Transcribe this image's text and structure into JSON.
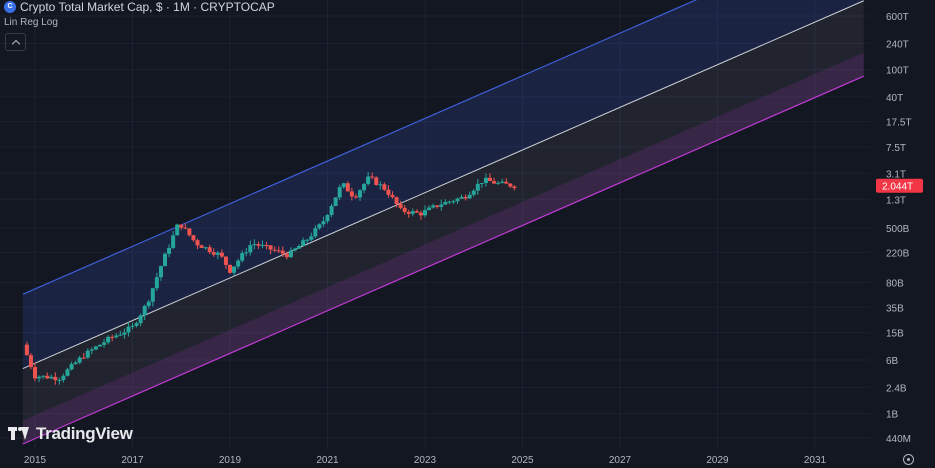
{
  "header": {
    "title": "Crypto Total Market Cap, $ · 1M · CRYPTOCAP",
    "indicator": "Lin Reg Log",
    "icon": "crypto-cap-icon"
  },
  "watermark": {
    "brand": "TradingView",
    "icon": "tradingview-logo-icon"
  },
  "colors": {
    "background": "#131722",
    "candle_up": "#26a69a",
    "candle_down": "#ef5350",
    "upper_band": "#3f5fd8",
    "lower_band": "#c03ad6",
    "midline": "#cfd2d8",
    "price_badge": "#f23645"
  },
  "chart_data": {
    "type": "candlestick",
    "scale": "log",
    "xrange": [
      2014.75,
      2032.0
    ],
    "yrange": [
      300000000.0,
      1000000000000000.0
    ],
    "y_ticks": [
      {
        "label": "600T",
        "value": 600000000000000.0
      },
      {
        "label": "240T",
        "value": 240000000000000.0
      },
      {
        "label": "100T",
        "value": 100000000000000.0
      },
      {
        "label": "40T",
        "value": 40000000000000.0
      },
      {
        "label": "17.5T",
        "value": 17500000000000.0
      },
      {
        "label": "7.5T",
        "value": 7500000000000.0
      },
      {
        "label": "3.1T",
        "value": 3100000000000.0
      },
      {
        "label": "1.3T",
        "value": 1300000000000.0
      },
      {
        "label": "500B",
        "value": 500000000000.0
      },
      {
        "label": "220B",
        "value": 220000000000.0
      },
      {
        "label": "80B",
        "value": 80000000000.0
      },
      {
        "label": "35B",
        "value": 35000000000.0
      },
      {
        "label": "15B",
        "value": 15000000000.0
      },
      {
        "label": "6B",
        "value": 6000000000.0
      },
      {
        "label": "2.4B",
        "value": 2400000000.0
      },
      {
        "label": "1B",
        "value": 1000000000.0
      },
      {
        "label": "440M",
        "value": 440000000.0
      }
    ],
    "x_ticks": [
      {
        "label": "2015",
        "value": 2015.0
      },
      {
        "label": "2017",
        "value": 2017.0
      },
      {
        "label": "2019",
        "value": 2019.0
      },
      {
        "label": "2021",
        "value": 2021.0
      },
      {
        "label": "2023",
        "value": 2023.0
      },
      {
        "label": "2025",
        "value": 2025.0
      },
      {
        "label": "2027",
        "value": 2027.0
      },
      {
        "label": "2029",
        "value": 2029.0
      },
      {
        "label": "2031",
        "value": 2031.0
      }
    ],
    "last_price": {
      "label": "2.044T",
      "value": 2044000000000.0
    },
    "regression": {
      "start": {
        "x": 2014.75,
        "y": 4500000000.0
      },
      "end": {
        "x": 2032.0,
        "y": 1000000000000000.0
      },
      "upper_factor": 12.0,
      "lower_factor": 0.08
    },
    "key_points": [
      {
        "x": 2014.75,
        "y": 10000000000.0
      },
      {
        "x": 2015.0,
        "y": 3500000000.0
      },
      {
        "x": 2015.5,
        "y": 3300000000.0
      },
      {
        "x": 2016.0,
        "y": 7000000000.0
      },
      {
        "x": 2016.5,
        "y": 12000000000.0
      },
      {
        "x": 2017.0,
        "y": 18000000000.0
      },
      {
        "x": 2017.3,
        "y": 40000000000.0
      },
      {
        "x": 2017.6,
        "y": 150000000000.0
      },
      {
        "x": 2017.95,
        "y": 600000000000.0
      },
      {
        "x": 2018.3,
        "y": 300000000000.0
      },
      {
        "x": 2018.8,
        "y": 200000000000.0
      },
      {
        "x": 2019.0,
        "y": 120000000000.0
      },
      {
        "x": 2019.45,
        "y": 300000000000.0
      },
      {
        "x": 2020.2,
        "y": 200000000000.0
      },
      {
        "x": 2020.6,
        "y": 350000000000.0
      },
      {
        "x": 2020.9,
        "y": 600000000000.0
      },
      {
        "x": 2021.3,
        "y": 2200000000000.0
      },
      {
        "x": 2021.55,
        "y": 1400000000000.0
      },
      {
        "x": 2021.85,
        "y": 2700000000000.0
      },
      {
        "x": 2022.2,
        "y": 1800000000000.0
      },
      {
        "x": 2022.5,
        "y": 900000000000.0
      },
      {
        "x": 2022.9,
        "y": 800000000000.0
      },
      {
        "x": 2023.3,
        "y": 1100000000000.0
      },
      {
        "x": 2023.8,
        "y": 1400000000000.0
      },
      {
        "x": 2024.2,
        "y": 2500000000000.0
      },
      {
        "x": 2024.5,
        "y": 2200000000000.0
      },
      {
        "x": 2024.85,
        "y": 2044000000000.0
      }
    ]
  }
}
